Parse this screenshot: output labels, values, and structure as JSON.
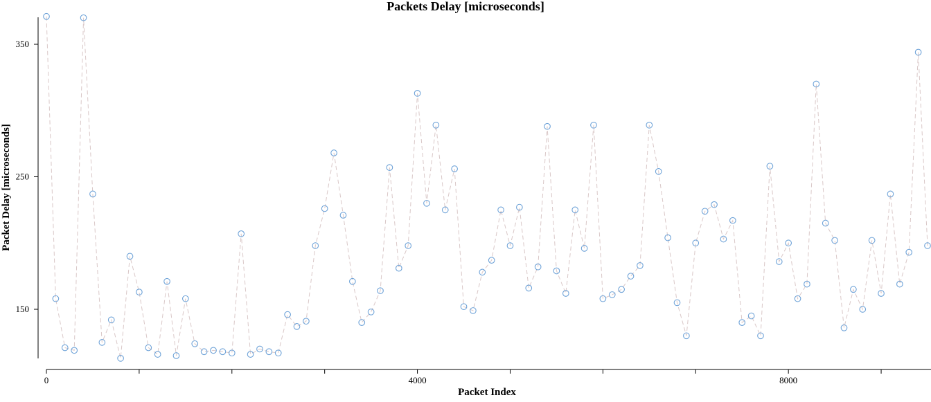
{
  "chart_data": {
    "type": "scatter",
    "title": "Packets Delay [microseconds]",
    "xlabel": "Packet Index",
    "ylabel": "Packet Delay [microseconds]",
    "xlim": [
      -100,
      9500
    ],
    "ylim": [
      112,
      375
    ],
    "x_ticks": [
      0,
      1000,
      2000,
      3000,
      4000,
      5000,
      6000,
      7000,
      8000,
      9000
    ],
    "x_tick_labels": [
      "0",
      "",
      "",
      "",
      "4000",
      "",
      "",
      "",
      "8000",
      ""
    ],
    "y_ticks": [
      150,
      250,
      350
    ],
    "y_tick_labels": [
      "150",
      "250",
      "350"
    ],
    "grid": false,
    "line_style": "dashed",
    "series": [
      {
        "x": [
          0,
          100,
          200,
          300,
          400,
          500,
          600,
          700,
          800,
          900,
          1000,
          1100,
          1200,
          1300,
          1400,
          1500,
          1600,
          1700,
          1800,
          1900,
          2000,
          2100,
          2200,
          2300,
          2400,
          2500,
          2600,
          2700,
          2800,
          2900,
          3000,
          3100,
          3200,
          3300,
          3400,
          3500,
          3600,
          3700,
          3800,
          3900,
          4000,
          4100,
          4200,
          4300,
          4400,
          4500,
          4600,
          4700,
          4800,
          4900,
          5000,
          5100,
          5200,
          5300,
          5400,
          5500,
          5600,
          5700,
          5800,
          5900,
          6000,
          6100,
          6200,
          6300,
          6400,
          6500,
          6600,
          6700,
          6800,
          6900,
          7000,
          7100,
          7200,
          7300,
          7400,
          7500,
          7600,
          7700,
          7800,
          7900,
          8000,
          8100,
          8200,
          8300,
          8400,
          8500,
          8600,
          8700,
          8800,
          8900,
          9000,
          9100,
          9200,
          9300,
          9400,
          9500
        ],
        "y": [
          371,
          158,
          121,
          119,
          370,
          237,
          125,
          142,
          113,
          190,
          163,
          121,
          116,
          171,
          115,
          158,
          124,
          118,
          119,
          118,
          117,
          207,
          116,
          120,
          118,
          117,
          146,
          137,
          141,
          198,
          226,
          268,
          221,
          171,
          140,
          148,
          164,
          257,
          181,
          198,
          313,
          230,
          289,
          225,
          256,
          152,
          149,
          178,
          187,
          225,
          198,
          227,
          166,
          182,
          288,
          179,
          162,
          225,
          196,
          289,
          158,
          161,
          165,
          175,
          183,
          289,
          254,
          204,
          155,
          130,
          200,
          224,
          229,
          203,
          217,
          140,
          145,
          130,
          258,
          186,
          200,
          158,
          169,
          320,
          215,
          202,
          136,
          165,
          150,
          202,
          162,
          237,
          169,
          193,
          344,
          198
        ]
      }
    ]
  }
}
